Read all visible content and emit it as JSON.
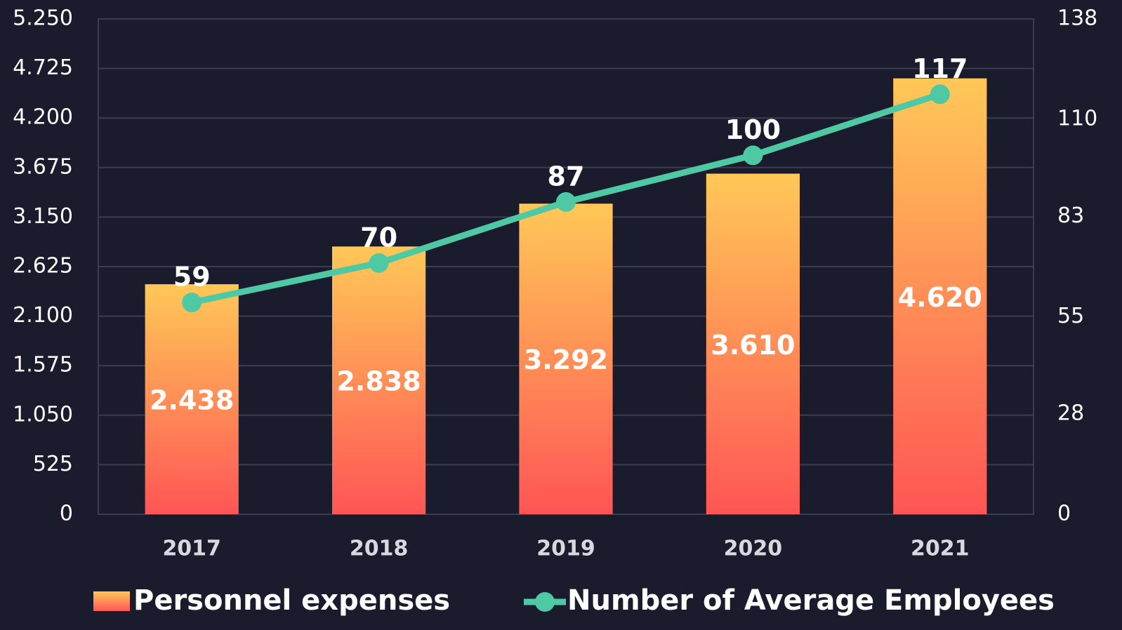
{
  "chart_data": {
    "type": "bar-line",
    "categories": [
      "2017",
      "2018",
      "2019",
      "2020",
      "2021"
    ],
    "series": [
      {
        "name": "Personnel expenses",
        "type": "bar",
        "color": "#ff8a50",
        "values": [
          2438,
          2838,
          3292,
          3610,
          4620
        ],
        "value_labels": [
          "2.438",
          "2.838",
          "3.292",
          "3.610",
          "4.620"
        ]
      },
      {
        "name": "Number of Average Employees",
        "type": "line",
        "axis": "y2",
        "color": "#4fc9a4",
        "values": [
          59,
          70,
          87,
          100,
          117
        ]
      }
    ],
    "ylim": [
      0,
      5250
    ],
    "yticks": [
      0,
      525,
      {
        "value": 1050,
        "label": "1.050"
      },
      {
        "value": 1575,
        "label": "1.575"
      },
      {
        "value": 2100,
        "label": "2.100"
      },
      {
        "value": 2625,
        "label": "2.625"
      },
      {
        "value": 3150,
        "label": "3.150"
      },
      {
        "value": 3675,
        "label": "3.675"
      },
      {
        "value": 4200,
        "label": "4.200"
      },
      {
        "value": 4725,
        "label": "4.725"
      },
      {
        "value": 5250,
        "label": "5.250"
      }
    ],
    "y2lim": [
      0,
      138
    ],
    "y2ticks": [
      0,
      28,
      55,
      83,
      110,
      138
    ],
    "grid": true
  }
}
